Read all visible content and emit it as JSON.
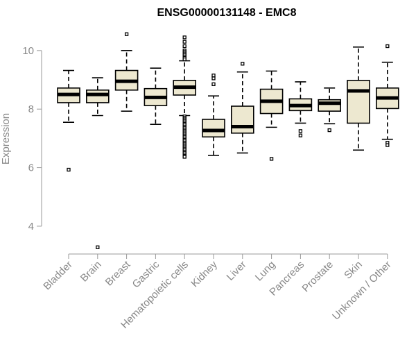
{
  "chart_data": {
    "type": "box",
    "title": "ENSG00000131148 - EMC8",
    "xlabel": "",
    "ylabel": "Expression",
    "ylim": [
      3.05,
      10.85
    ],
    "yticks": [
      4,
      6,
      8,
      10
    ],
    "grid": false,
    "legend": "none",
    "box_fill": "#EDE8D0",
    "box_stroke": "#000000",
    "categories": [
      "Bladder",
      "Brain",
      "Breast",
      "Gastric",
      "Hematopoietic cells",
      "Kidney",
      "Liver",
      "Lung",
      "Pancreas",
      "Prostate",
      "Skin",
      "Unknown / Other"
    ],
    "boxes": [
      {
        "category": "Bladder",
        "whisker_low": 7.55,
        "q1": 8.22,
        "median": 8.5,
        "q3": 8.72,
        "whisker_high": 9.32,
        "outliers": [
          5.93
        ]
      },
      {
        "category": "Brain",
        "whisker_low": 7.78,
        "q1": 8.22,
        "median": 8.5,
        "q3": 8.65,
        "whisker_high": 9.07,
        "outliers": [
          3.28
        ]
      },
      {
        "category": "Breast",
        "whisker_low": 7.93,
        "q1": 8.65,
        "median": 8.95,
        "q3": 9.32,
        "whisker_high": 10.0,
        "outliers": [
          10.56
        ]
      },
      {
        "category": "Gastric",
        "whisker_low": 7.48,
        "q1": 8.12,
        "median": 8.4,
        "q3": 8.7,
        "whisker_high": 9.4,
        "outliers": []
      },
      {
        "category": "Hematopoietic cells",
        "whisker_low": 7.78,
        "q1": 8.48,
        "median": 8.75,
        "q3": 8.98,
        "whisker_high": 9.65,
        "outliers": [
          10.45,
          10.3,
          10.15,
          10.0,
          9.95,
          9.9,
          9.85,
          9.8,
          9.75,
          9.7,
          7.75,
          7.7,
          7.65,
          7.6,
          7.55,
          7.5,
          7.45,
          7.4,
          7.35,
          7.3,
          7.25,
          7.2,
          7.15,
          7.1,
          7.05,
          7.0,
          6.95,
          6.9,
          6.85,
          6.8,
          6.75,
          6.7,
          6.65,
          6.6,
          6.55,
          6.5,
          6.45,
          6.4,
          6.37
        ]
      },
      {
        "category": "Kidney",
        "whisker_low": 6.42,
        "q1": 7.05,
        "median": 7.27,
        "q3": 7.65,
        "whisker_high": 8.45,
        "outliers": [
          8.85,
          9.05,
          9.15
        ]
      },
      {
        "category": "Liver",
        "whisker_low": 6.5,
        "q1": 7.18,
        "median": 7.4,
        "q3": 8.1,
        "whisker_high": 9.27,
        "outliers": [
          9.55
        ]
      },
      {
        "category": "Lung",
        "whisker_low": 7.38,
        "q1": 7.85,
        "median": 8.27,
        "q3": 8.68,
        "whisker_high": 9.3,
        "outliers": [
          6.3
        ]
      },
      {
        "category": "Pancreas",
        "whisker_low": 7.52,
        "q1": 7.95,
        "median": 8.12,
        "q3": 8.35,
        "whisker_high": 8.93,
        "outliers": [
          7.25,
          7.1
        ]
      },
      {
        "category": "Prostate",
        "whisker_low": 7.5,
        "q1": 7.93,
        "median": 8.2,
        "q3": 8.32,
        "whisker_high": 8.72,
        "outliers": [
          7.28
        ]
      },
      {
        "category": "Skin",
        "whisker_low": 6.6,
        "q1": 7.52,
        "median": 8.62,
        "q3": 8.98,
        "whisker_high": 10.12,
        "outliers": []
      },
      {
        "category": "Unknown / Other",
        "whisker_low": 6.97,
        "q1": 8.02,
        "median": 8.38,
        "q3": 8.72,
        "whisker_high": 9.6,
        "outliers": [
          6.85,
          6.77,
          10.15
        ]
      }
    ]
  }
}
